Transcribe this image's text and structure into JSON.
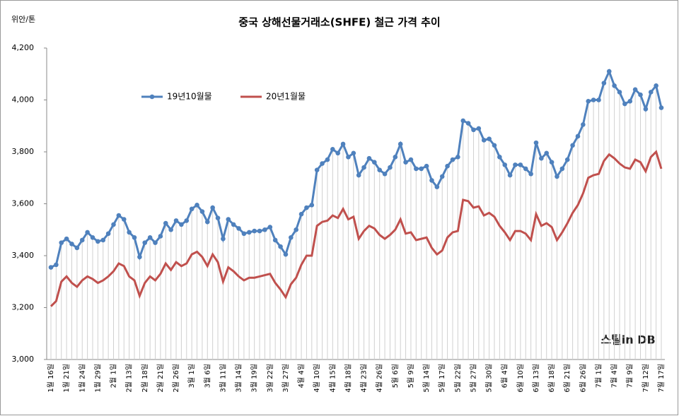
{
  "chart_data": {
    "type": "line",
    "title": "중국 상해선물거래소(SHFE)  철근 가격 추이",
    "y_axis_label": "위안/톤",
    "watermark": "스틸in DB",
    "ylim": [
      3000,
      4200
    ],
    "yticks": [
      {
        "value": 3000,
        "label": "3,000"
      },
      {
        "value": 3200,
        "label": "3,200"
      },
      {
        "value": 3400,
        "label": "3,400"
      },
      {
        "value": 3600,
        "label": "3,600"
      },
      {
        "value": 3800,
        "label": "3,800"
      },
      {
        "value": 4000,
        "label": "4,000"
      },
      {
        "value": 4200,
        "label": "4,200"
      }
    ],
    "grid": false,
    "drop_lines": true,
    "categories": [
      "1월 16일",
      null,
      null,
      "1월 21일",
      null,
      null,
      "1월 24일",
      null,
      null,
      "1월 29일",
      null,
      null,
      "2월 1일",
      null,
      null,
      "2월 13일",
      null,
      null,
      "2월 18일",
      null,
      null,
      "2월 21일",
      null,
      null,
      "2월 26일",
      null,
      null,
      "3월 1일",
      null,
      null,
      "3월 6일",
      null,
      null,
      "3월 11일",
      null,
      null,
      "3월 14일",
      null,
      null,
      "3월 19일",
      null,
      null,
      "3월 22일",
      null,
      null,
      "3월 27일",
      null,
      null,
      "4월 4일",
      null,
      null,
      "4월 10일",
      null,
      null,
      "4월 15일",
      null,
      null,
      "4월 18일",
      null,
      null,
      "4월 23일",
      null,
      null,
      "4월 26일",
      null,
      null,
      "5월 6일",
      null,
      null,
      "5월 9일",
      null,
      null,
      "5월 14일",
      null,
      null,
      "5월 17일",
      null,
      null,
      "5월 22일",
      null,
      null,
      "5월 27일",
      null,
      null,
      "5월 30일",
      null,
      null,
      "6월 4일",
      null,
      null,
      "6월 10일",
      null,
      null,
      "6월 13일",
      null,
      null,
      "6월 18일",
      null,
      null,
      "6월 21일",
      null,
      null,
      "6월 26일",
      null,
      null,
      "7월 1일",
      null,
      null,
      "7월 4일",
      null,
      null,
      "7월 9일",
      null,
      null,
      "7월 12일",
      null,
      null,
      "7월 17일"
    ],
    "series": [
      {
        "name": "19년10월물",
        "color": "#4f81bd",
        "marker": true,
        "values": [
          3355,
          3365,
          3450,
          3465,
          3445,
          3430,
          3460,
          3490,
          3470,
          3455,
          3460,
          3485,
          3520,
          3555,
          3540,
          3490,
          3470,
          3395,
          3450,
          3470,
          3450,
          3475,
          3525,
          3500,
          3535,
          3520,
          3535,
          3580,
          3595,
          3570,
          3530,
          3585,
          3545,
          3465,
          3540,
          3520,
          3505,
          3485,
          3490,
          3495,
          3495,
          3500,
          3510,
          3460,
          3435,
          3405,
          3470,
          3500,
          3560,
          3585,
          3595,
          3730,
          3755,
          3770,
          3810,
          3795,
          3830,
          3780,
          3795,
          3710,
          3740,
          3775,
          3760,
          3730,
          3715,
          3740,
          3780,
          3830,
          3760,
          3770,
          3735,
          3735,
          3745,
          3690,
          3665,
          3705,
          3745,
          3770,
          3780,
          3920,
          3910,
          3885,
          3890,
          3845,
          3850,
          3825,
          3780,
          3750,
          3710,
          3750,
          3750,
          3735,
          3715,
          3835,
          3775,
          3795,
          3760,
          3705,
          3735,
          3770,
          3825,
          3860,
          3905,
          3995,
          4000,
          4000,
          4065,
          4110,
          4055,
          4030,
          3985,
          3995,
          4040,
          4020,
          3965,
          4030,
          4055,
          3970
        ]
      },
      {
        "name": "20년1월물",
        "color": "#c0504d",
        "marker": false,
        "values": [
          3205,
          3225,
          3300,
          3320,
          3295,
          3280,
          3305,
          3320,
          3310,
          3295,
          3305,
          3320,
          3340,
          3370,
          3360,
          3320,
          3305,
          3245,
          3295,
          3320,
          3305,
          3330,
          3370,
          3345,
          3375,
          3360,
          3370,
          3405,
          3415,
          3395,
          3360,
          3405,
          3375,
          3300,
          3355,
          3340,
          3320,
          3305,
          3315,
          3315,
          3320,
          3325,
          3330,
          3295,
          3270,
          3240,
          3290,
          3315,
          3365,
          3400,
          3400,
          3515,
          3530,
          3535,
          3555,
          3545,
          3580,
          3540,
          3550,
          3465,
          3495,
          3515,
          3505,
          3480,
          3465,
          3480,
          3500,
          3540,
          3485,
          3490,
          3460,
          3465,
          3470,
          3430,
          3405,
          3420,
          3470,
          3490,
          3495,
          3615,
          3610,
          3585,
          3590,
          3555,
          3565,
          3550,
          3515,
          3490,
          3460,
          3495,
          3495,
          3485,
          3460,
          3560,
          3515,
          3525,
          3510,
          3460,
          3490,
          3525,
          3565,
          3595,
          3640,
          3700,
          3710,
          3715,
          3765,
          3790,
          3775,
          3755,
          3740,
          3735,
          3770,
          3760,
          3725,
          3780,
          3800,
          3735
        ]
      }
    ]
  }
}
